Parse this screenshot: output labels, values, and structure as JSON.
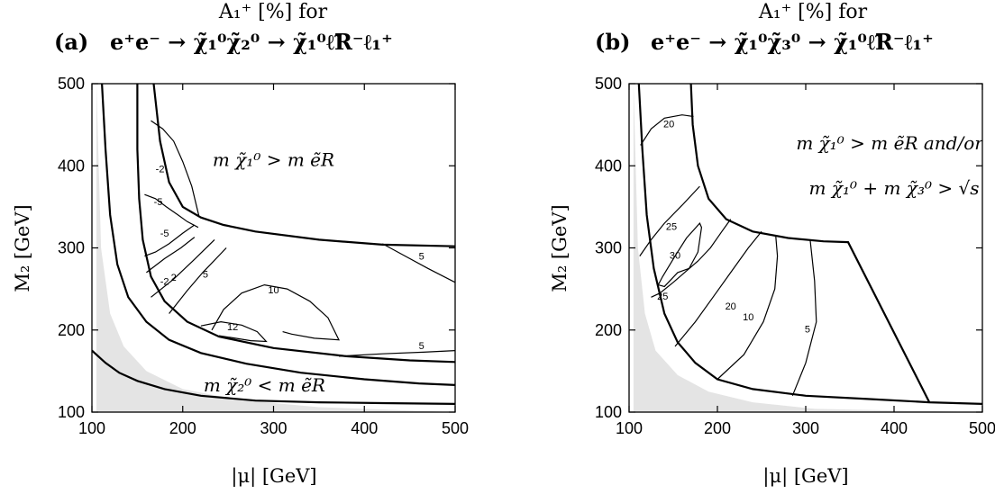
{
  "chart_data": [
    {
      "type": "contour",
      "panel": "(a)",
      "title_line1": "A₁⁺ [%] for",
      "title_line2_label": "(a)",
      "title_line2_process": "e⁺e⁻ → χ̃₁⁰χ̃₂⁰ → χ̃₁⁰ℓ̃R⁻ℓ₁⁺",
      "xlabel": "|μ| [GeV]",
      "ylabel": "M₂ [GeV]",
      "xlim": [
        100,
        500
      ],
      "ylim": [
        100,
        500
      ],
      "xticks": [
        100,
        200,
        300,
        400,
        500
      ],
      "yticks": [
        100,
        200,
        300,
        400,
        500
      ],
      "region_labels": [
        {
          "text": "m χ̃₁⁰ > m ẽR",
          "at": [
            300,
            400
          ]
        },
        {
          "text": "m χ̃₂⁰ < m ẽR",
          "at": [
            290,
            125
          ]
        }
      ],
      "shaded_region": [
        [
          105,
          100
        ],
        [
          105,
          500
        ],
        [
          110,
          300
        ],
        [
          120,
          220
        ],
        [
          135,
          180
        ],
        [
          160,
          150
        ],
        [
          200,
          128
        ],
        [
          260,
          115
        ],
        [
          350,
          106
        ],
        [
          500,
          100
        ]
      ],
      "boundaries": [
        [
          [
            111,
            500
          ],
          [
            115,
            420
          ],
          [
            120,
            340
          ],
          [
            128,
            280
          ],
          [
            140,
            240
          ],
          [
            160,
            210
          ],
          [
            185,
            188
          ],
          [
            220,
            172
          ],
          [
            270,
            159
          ],
          [
            330,
            148
          ],
          [
            400,
            140
          ],
          [
            460,
            135
          ],
          [
            500,
            133
          ]
        ],
        [
          [
            168,
            500
          ],
          [
            175,
            430
          ],
          [
            185,
            380
          ],
          [
            200,
            350
          ],
          [
            220,
            337
          ],
          [
            245,
            328
          ],
          [
            280,
            320
          ],
          [
            350,
            310
          ],
          [
            420,
            304
          ],
          [
            500,
            302
          ]
        ],
        [
          [
            150,
            500
          ],
          [
            150,
            420
          ],
          [
            152,
            360
          ],
          [
            156,
            310
          ],
          [
            165,
            265
          ],
          [
            180,
            235
          ],
          [
            205,
            210
          ],
          [
            240,
            192
          ],
          [
            300,
            178
          ],
          [
            380,
            168
          ],
          [
            450,
            163
          ],
          [
            500,
            161
          ]
        ],
        [
          [
            100,
            175
          ],
          [
            115,
            160
          ],
          [
            130,
            148
          ],
          [
            150,
            138
          ],
          [
            180,
            128
          ],
          [
            220,
            120
          ],
          [
            280,
            114
          ],
          [
            350,
            112
          ],
          [
            420,
            111
          ],
          [
            500,
            110
          ]
        ]
      ],
      "contours": [
        {
          "level": "-2",
          "points": [
            [
              165,
              455
            ],
            [
              178,
              445
            ],
            [
              190,
              430
            ],
            [
              200,
              405
            ],
            [
              210,
              375
            ],
            [
              218,
              338
            ]
          ],
          "label_at": [
            175,
            395
          ]
        },
        {
          "level": "-5",
          "points": [
            [
              158,
              365
            ],
            [
              170,
              360
            ],
            [
              182,
              350
            ],
            [
              195,
              340
            ],
            [
              205,
              332
            ],
            [
              217,
              325
            ]
          ],
          "label_at": [
            173,
            355
          ]
        },
        {
          "level": "-5",
          "points": [
            [
              158,
              290
            ],
            [
              170,
              295
            ],
            [
              185,
              305
            ],
            [
              200,
              318
            ],
            [
              213,
              328
            ]
          ],
          "label_at": [
            180,
            317
          ]
        },
        {
          "level": "-2",
          "points": [
            [
              160,
              270
            ],
            [
              180,
              287
            ],
            [
              198,
              300
            ],
            [
              213,
              313
            ]
          ],
          "label_at": [
            180,
            258
          ]
        },
        {
          "level": "2",
          "points": [
            [
              165,
              240
            ],
            [
              190,
              262
            ],
            [
              212,
              285
            ],
            [
              235,
              310
            ]
          ],
          "label_at": [
            190,
            263
          ]
        },
        {
          "level": "5",
          "points": [
            [
              185,
              220
            ],
            [
              205,
              248
            ],
            [
              222,
              270
            ],
            [
              248,
              300
            ]
          ],
          "label_at": [
            225,
            267
          ]
        },
        {
          "level": "10",
          "points": [
            [
              232,
              200
            ],
            [
              245,
              225
            ],
            [
              265,
              245
            ],
            [
              290,
              255
            ],
            [
              315,
              250
            ],
            [
              340,
              235
            ],
            [
              360,
              215
            ],
            [
              372,
              188
            ],
            [
              345,
              190
            ],
            [
              320,
              195
            ],
            [
              310,
              198
            ]
          ],
          "label_at": [
            300,
            248
          ]
        },
        {
          "level": "12",
          "points": [
            [
              220,
              205
            ],
            [
              242,
              210
            ],
            [
              265,
              206
            ],
            [
              282,
              198
            ],
            [
              292,
              186
            ],
            [
              275,
              187
            ],
            [
              258,
              190
            ],
            [
              240,
              193
            ]
          ],
          "label_at": [
            255,
            203
          ]
        },
        {
          "level": "5",
          "points": [
            [
              420,
              305
            ],
            [
              445,
              290
            ],
            [
              470,
              275
            ],
            [
              500,
              258
            ]
          ],
          "label_at": [
            463,
            289
          ]
        },
        {
          "level": "5",
          "points": [
            [
              372,
              168
            ],
            [
              420,
              171
            ],
            [
              465,
              173
            ],
            [
              500,
              175
            ]
          ],
          "label_at": [
            463,
            180
          ]
        }
      ]
    },
    {
      "type": "contour",
      "panel": "(b)",
      "title_line1": "A₁⁺ [%] for",
      "title_line2_label": "(b)",
      "title_line2_process": "e⁺e⁻ → χ̃₁⁰χ̃₃⁰ → χ̃₁⁰ℓ̃R⁻ℓ₁⁺",
      "xlabel": "|μ| [GeV]",
      "ylabel": "M₂ [GeV]",
      "xlim": [
        100,
        500
      ],
      "ylim": [
        100,
        500
      ],
      "xticks": [
        100,
        200,
        300,
        400,
        500
      ],
      "yticks": [
        100,
        200,
        300,
        400,
        500
      ],
      "region_labels": [
        {
          "text": "m χ̃₁⁰ > m ẽR and/or",
          "at": [
            395,
            420
          ]
        },
        {
          "text": "m χ̃₁⁰ + m χ̃₃⁰ > √s",
          "at": [
            400,
            365
          ]
        }
      ],
      "shaded_region": [
        [
          105,
          100
        ],
        [
          105,
          500
        ],
        [
          110,
          300
        ],
        [
          118,
          220
        ],
        [
          130,
          175
        ],
        [
          155,
          145
        ],
        [
          190,
          125
        ],
        [
          240,
          112
        ],
        [
          310,
          104
        ],
        [
          500,
          100
        ]
      ],
      "boundaries": [
        [
          [
            111,
            500
          ],
          [
            115,
            420
          ],
          [
            120,
            340
          ],
          [
            128,
            275
          ],
          [
            140,
            220
          ],
          [
            155,
            185
          ],
          [
            175,
            160
          ],
          [
            200,
            140
          ],
          [
            240,
            128
          ],
          [
            300,
            120
          ],
          [
            370,
            116
          ],
          [
            440,
            112
          ],
          [
            500,
            110
          ]
        ],
        [
          [
            170,
            500
          ],
          [
            172,
            450
          ],
          [
            178,
            400
          ],
          [
            190,
            360
          ],
          [
            210,
            335
          ],
          [
            240,
            320
          ],
          [
            280,
            312
          ],
          [
            320,
            308
          ],
          [
            348,
            307
          ],
          [
            440,
            112
          ]
        ]
      ],
      "contours": [
        {
          "level": "20",
          "points": [
            [
              113,
              425
            ],
            [
              125,
              445
            ],
            [
              140,
              458
            ],
            [
              160,
              462
            ],
            [
              173,
              460
            ]
          ],
          "label_at": [
            145,
            450
          ]
        },
        {
          "level": "25",
          "points": [
            [
              112,
              290
            ],
            [
              125,
              310
            ],
            [
              140,
              330
            ],
            [
              160,
              352
            ],
            [
              180,
              375
            ]
          ],
          "label_at": [
            148,
            325
          ]
        },
        {
          "level": "30",
          "points": [
            [
              133,
              255
            ],
            [
              138,
              265
            ],
            [
              152,
              290
            ],
            [
              165,
              312
            ],
            [
              180,
              330
            ],
            [
              182,
              325
            ],
            [
              178,
              295
            ],
            [
              168,
              275
            ],
            [
              155,
              270
            ],
            [
              140,
              253
            ],
            [
              133,
              255
            ]
          ],
          "label_at": [
            152,
            290
          ]
        },
        {
          "level": "25",
          "points": [
            [
              125,
              240
            ],
            [
              135,
              245
            ],
            [
              150,
              258
            ],
            [
              165,
              272
            ],
            [
              178,
              284
            ],
            [
              192,
              300
            ],
            [
              205,
              320
            ],
            [
              215,
              335
            ]
          ],
          "label_at": [
            138,
            240
          ]
        },
        {
          "level": "20",
          "points": [
            [
              152,
              180
            ],
            [
              175,
              210
            ],
            [
              195,
              240
            ],
            [
              215,
              270
            ],
            [
              235,
              300
            ],
            [
              250,
              320
            ]
          ],
          "label_at": [
            215,
            228
          ]
        },
        {
          "level": "10",
          "points": [
            [
              200,
              140
            ],
            [
              230,
              170
            ],
            [
              252,
              210
            ],
            [
              265,
              250
            ],
            [
              268,
              290
            ],
            [
              266,
              315
            ]
          ],
          "label_at": [
            235,
            215
          ]
        },
        {
          "level": "5",
          "points": [
            [
              285,
              120
            ],
            [
              300,
              160
            ],
            [
              312,
              210
            ],
            [
              310,
              260
            ],
            [
              305,
              310
            ]
          ],
          "label_at": [
            302,
            200
          ]
        }
      ]
    }
  ]
}
